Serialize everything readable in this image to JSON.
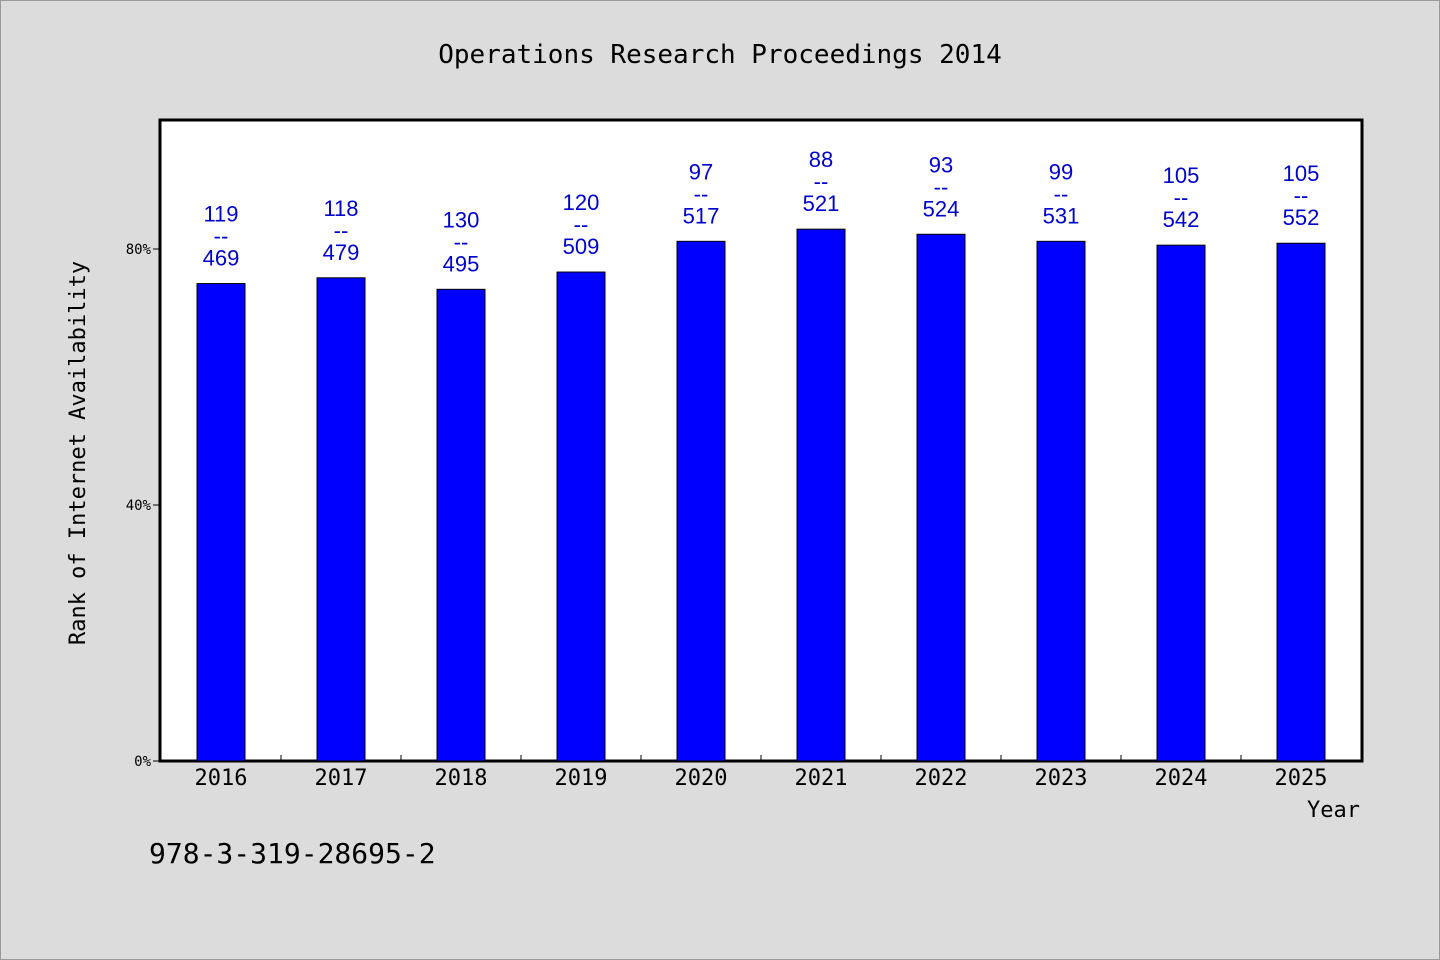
{
  "chart_data": {
    "type": "bar",
    "title": "Operations Research Proceedings 2014",
    "xlabel": "Year",
    "ylabel": "Rank of Internet Availability",
    "categories": [
      "2016",
      "2017",
      "2018",
      "2019",
      "2020",
      "2021",
      "2022",
      "2023",
      "2024",
      "2025"
    ],
    "values": [
      74.6,
      75.5,
      73.7,
      76.4,
      81.2,
      83.1,
      82.3,
      81.2,
      80.6,
      80.9
    ],
    "data_labels": [
      {
        "top": "119",
        "sep": "--",
        "bottom": "469"
      },
      {
        "top": "118",
        "sep": "--",
        "bottom": "479"
      },
      {
        "top": "130",
        "sep": "--",
        "bottom": "495"
      },
      {
        "top": "120",
        "sep": "--",
        "bottom": "509"
      },
      {
        "top": "97",
        "sep": "--",
        "bottom": "517"
      },
      {
        "top": "88",
        "sep": "--",
        "bottom": "521"
      },
      {
        "top": "93",
        "sep": "--",
        "bottom": "524"
      },
      {
        "top": "99",
        "sep": "--",
        "bottom": "531"
      },
      {
        "top": "105",
        "sep": "--",
        "bottom": "542"
      },
      {
        "top": "105",
        "sep": "--",
        "bottom": "552"
      }
    ],
    "yticks": [
      0,
      40,
      80
    ],
    "ytick_labels": [
      "0%",
      "40%",
      "80%"
    ],
    "ylim": [
      0,
      100
    ],
    "grid": false,
    "bar_color": "#0000ff",
    "label_color": "#0000cc",
    "plot_background": "#ffffff",
    "page_background": "#dcdcdc"
  },
  "footer": {
    "isbn": "978-3-319-28695-2"
  }
}
